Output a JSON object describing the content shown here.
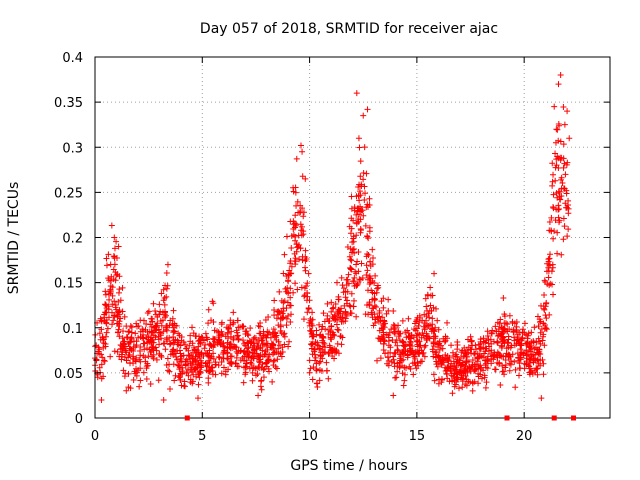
{
  "chart_data": {
    "type": "scatter",
    "title": "Day 057 of 2018, SRMTID for receiver ajac",
    "xlabel": "GPS time / hours",
    "ylabel": "SRMTID / TECUs",
    "xlim": [
      0,
      24
    ],
    "ylim": [
      0,
      0.4
    ],
    "x_ticks": [
      0,
      5,
      10,
      15,
      20
    ],
    "y_ticks": [
      0,
      0.05,
      0.1,
      0.15,
      0.2,
      0.25,
      0.3,
      0.35,
      0.4
    ],
    "x_tick_labels": [
      "0",
      "5",
      "10",
      "15",
      "20"
    ],
    "y_tick_labels": [
      "0",
      "0.05",
      "0.1",
      "0.15",
      "0.2",
      "0.25",
      "0.3",
      "0.35",
      "0.4"
    ],
    "grid": true,
    "marker": "plus",
    "color": "#ff0000",
    "axis_markers_x": [
      4.3,
      19.2,
      21.4,
      22.3
    ],
    "envelope": [
      [
        0.0,
        0.075,
        0.03
      ],
      [
        0.3,
        0.085,
        0.04
      ],
      [
        0.6,
        0.12,
        0.05
      ],
      [
        0.9,
        0.16,
        0.06
      ],
      [
        1.2,
        0.09,
        0.04
      ],
      [
        1.5,
        0.07,
        0.03
      ],
      [
        2.0,
        0.075,
        0.03
      ],
      [
        2.5,
        0.08,
        0.035
      ],
      [
        3.0,
        0.1,
        0.04
      ],
      [
        3.3,
        0.11,
        0.045
      ],
      [
        3.6,
        0.08,
        0.035
      ],
      [
        4.0,
        0.06,
        0.03
      ],
      [
        4.5,
        0.065,
        0.03
      ],
      [
        5.0,
        0.07,
        0.03
      ],
      [
        5.5,
        0.08,
        0.035
      ],
      [
        6.0,
        0.085,
        0.035
      ],
      [
        6.5,
        0.08,
        0.03
      ],
      [
        7.0,
        0.075,
        0.03
      ],
      [
        7.5,
        0.07,
        0.03
      ],
      [
        8.0,
        0.075,
        0.03
      ],
      [
        8.5,
        0.09,
        0.035
      ],
      [
        9.0,
        0.13,
        0.05
      ],
      [
        9.4,
        0.22,
        0.07
      ],
      [
        9.7,
        0.2,
        0.07
      ],
      [
        10.0,
        0.1,
        0.04
      ],
      [
        10.3,
        0.07,
        0.03
      ],
      [
        10.7,
        0.08,
        0.03
      ],
      [
        11.2,
        0.1,
        0.04
      ],
      [
        11.7,
        0.13,
        0.045
      ],
      [
        12.1,
        0.19,
        0.06
      ],
      [
        12.4,
        0.24,
        0.08
      ],
      [
        12.7,
        0.2,
        0.07
      ],
      [
        13.0,
        0.13,
        0.05
      ],
      [
        13.4,
        0.09,
        0.04
      ],
      [
        13.8,
        0.085,
        0.035
      ],
      [
        14.3,
        0.07,
        0.03
      ],
      [
        14.8,
        0.08,
        0.03
      ],
      [
        15.2,
        0.09,
        0.035
      ],
      [
        15.6,
        0.11,
        0.04
      ],
      [
        16.0,
        0.07,
        0.03
      ],
      [
        16.5,
        0.06,
        0.025
      ],
      [
        17.0,
        0.055,
        0.025
      ],
      [
        17.5,
        0.06,
        0.025
      ],
      [
        18.0,
        0.065,
        0.025
      ],
      [
        18.5,
        0.075,
        0.03
      ],
      [
        19.0,
        0.085,
        0.035
      ],
      [
        19.5,
        0.08,
        0.035
      ],
      [
        20.0,
        0.075,
        0.03
      ],
      [
        20.5,
        0.065,
        0.03
      ],
      [
        20.9,
        0.1,
        0.04
      ],
      [
        21.3,
        0.2,
        0.07
      ],
      [
        21.6,
        0.27,
        0.08
      ],
      [
        21.9,
        0.25,
        0.07
      ],
      [
        22.1,
        0.2,
        0.07
      ]
    ],
    "peaks": [
      [
        9.6,
        0.302
      ],
      [
        9.65,
        0.295
      ],
      [
        12.5,
        0.335
      ],
      [
        12.7,
        0.342
      ],
      [
        12.3,
        0.31
      ],
      [
        21.7,
        0.38
      ],
      [
        21.6,
        0.37
      ],
      [
        21.4,
        0.345
      ],
      [
        22.0,
        0.34
      ],
      [
        22.1,
        0.31
      ],
      [
        0.9,
        0.2
      ],
      [
        1.1,
        0.19
      ],
      [
        3.4,
        0.17
      ],
      [
        15.8,
        0.16
      ],
      [
        21.5,
        0.32
      ],
      [
        0.3,
        0.02
      ],
      [
        3.2,
        0.02
      ],
      [
        4.8,
        0.022
      ],
      [
        13.9,
        0.025
      ],
      [
        17.6,
        0.03
      ],
      [
        20.8,
        0.022
      ],
      [
        7.6,
        0.025
      ],
      [
        12.2,
        0.36
      ],
      [
        9.8,
        0.265
      ]
    ]
  }
}
